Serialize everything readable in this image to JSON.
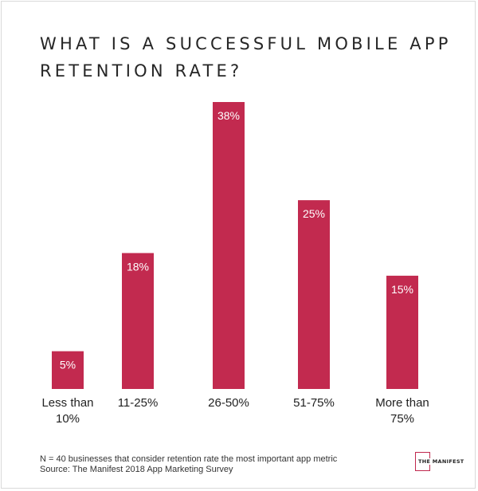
{
  "chart_data": {
    "type": "bar",
    "title": "WHAT IS A SUCCESSFUL MOBILE APP RETENTION RATE?",
    "categories": [
      [
        "Less than",
        "10%"
      ],
      [
        "11-25%"
      ],
      [
        "26-50%"
      ],
      [
        "51-75%"
      ],
      [
        "More than",
        "75%"
      ]
    ],
    "values": [
      5,
      18,
      38,
      25,
      15
    ],
    "data_labels": [
      "5%",
      "18%",
      "38%",
      "25%",
      "15%"
    ],
    "ylim": [
      0,
      38
    ],
    "bar_color": "#c22a4f",
    "label_color": "#ffffff",
    "grid": false,
    "legend": "none"
  },
  "footnote": {
    "line1": "N = 40 businesses that consider retention rate the most important app metric",
    "line2": "Source: The Manifest 2018 App Marketing Survey"
  },
  "logo": {
    "text": "THE MANIFEST"
  }
}
